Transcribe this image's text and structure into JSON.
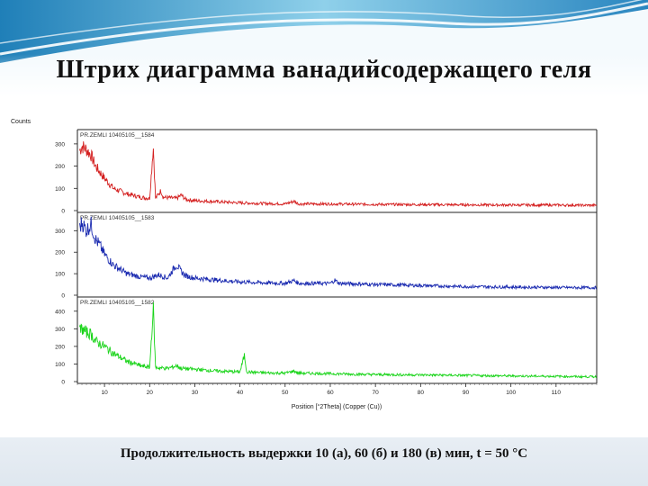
{
  "slide": {
    "title": "Штрих диаграмма ванадийсодержащего  геля",
    "caption": "Продолжительность выдержки 10 (а),  60 (б) и 180 (в) мин, t = 50 °С"
  },
  "chart_data": {
    "type": "line",
    "ylabel": "Counts",
    "xlabel": "Position [°2Theta] (Copper (Cu))",
    "xlim": [
      4,
      119
    ],
    "x_ticks": [
      "10",
      "20",
      "30",
      "40",
      "50",
      "60",
      "70",
      "80",
      "90",
      "100",
      "110"
    ],
    "panels": [
      {
        "name": "PR.ZEMLI 10405105__1584",
        "color": "#d42020",
        "ylim": [
          0,
          340
        ],
        "y_ticks": [
          "0",
          "100",
          "200",
          "300"
        ],
        "points": [
          [
            4.5,
            270
          ],
          [
            5,
            290
          ],
          [
            6,
            275
          ],
          [
            7,
            250
          ],
          [
            8,
            200
          ],
          [
            10,
            145
          ],
          [
            12,
            100
          ],
          [
            15,
            75
          ],
          [
            18,
            60
          ],
          [
            20,
            55
          ],
          [
            20.8,
            290
          ],
          [
            21.3,
            55
          ],
          [
            22.5,
            90
          ],
          [
            23,
            60
          ],
          [
            26,
            55
          ],
          [
            27,
            70
          ],
          [
            28,
            50
          ],
          [
            30,
            45
          ],
          [
            35,
            40
          ],
          [
            40,
            35
          ],
          [
            45,
            32
          ],
          [
            50,
            30
          ],
          [
            52,
            42
          ],
          [
            53,
            30
          ],
          [
            60,
            30
          ],
          [
            70,
            28
          ],
          [
            80,
            27
          ],
          [
            90,
            26
          ],
          [
            100,
            25
          ],
          [
            110,
            25
          ],
          [
            115,
            24
          ],
          [
            119,
            24
          ]
        ]
      },
      {
        "name": "PR.ZEMLI 10405105__1583",
        "color": "#1a2ab0",
        "ylim": [
          0,
          360
        ],
        "y_ticks": [
          "0",
          "100",
          "200",
          "300"
        ],
        "points": [
          [
            4.5,
            310
          ],
          [
            5,
            340
          ],
          [
            6,
            300
          ],
          [
            7,
            330
          ],
          [
            8,
            260
          ],
          [
            9,
            230
          ],
          [
            10,
            190
          ],
          [
            12,
            140
          ],
          [
            15,
            100
          ],
          [
            18,
            85
          ],
          [
            20,
            80
          ],
          [
            22,
            95
          ],
          [
            24,
            80
          ],
          [
            25.5,
            130
          ],
          [
            26,
            140
          ],
          [
            27,
            110
          ],
          [
            28,
            90
          ],
          [
            30,
            80
          ],
          [
            35,
            70
          ],
          [
            40,
            62
          ],
          [
            45,
            58
          ],
          [
            50,
            55
          ],
          [
            52,
            68
          ],
          [
            53,
            55
          ],
          [
            60,
            55
          ],
          [
            61,
            70
          ],
          [
            62,
            55
          ],
          [
            70,
            50
          ],
          [
            80,
            45
          ],
          [
            90,
            40
          ],
          [
            100,
            38
          ],
          [
            110,
            36
          ],
          [
            115,
            35
          ],
          [
            119,
            35
          ]
        ]
      },
      {
        "name": "PR.ZEMLI 10405105__1582",
        "color": "#19d419",
        "ylim": [
          0,
          450
        ],
        "y_ticks": [
          "0",
          "100",
          "200",
          "300",
          "400"
        ],
        "points": [
          [
            4.5,
            290
          ],
          [
            5,
            300
          ],
          [
            6,
            280
          ],
          [
            7,
            270
          ],
          [
            8,
            230
          ],
          [
            10,
            200
          ],
          [
            12,
            160
          ],
          [
            15,
            115
          ],
          [
            18,
            90
          ],
          [
            20,
            80
          ],
          [
            20.8,
            420
          ],
          [
            21.3,
            80
          ],
          [
            24,
            75
          ],
          [
            26,
            90
          ],
          [
            27,
            75
          ],
          [
            30,
            70
          ],
          [
            35,
            60
          ],
          [
            40,
            55
          ],
          [
            41,
            150
          ],
          [
            41.5,
            55
          ],
          [
            45,
            50
          ],
          [
            50,
            48
          ],
          [
            52,
            60
          ],
          [
            53,
            48
          ],
          [
            60,
            45
          ],
          [
            70,
            40
          ],
          [
            80,
            38
          ],
          [
            90,
            35
          ],
          [
            100,
            32
          ],
          [
            110,
            30
          ],
          [
            115,
            28
          ],
          [
            119,
            28
          ]
        ]
      }
    ]
  }
}
